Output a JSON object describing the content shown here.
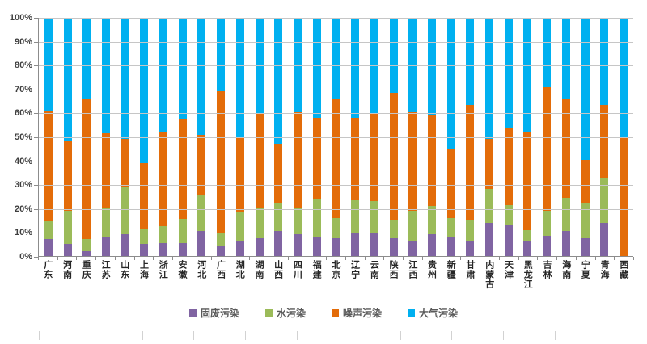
{
  "chart_data": {
    "type": "bar",
    "variant": "stacked-percent-column",
    "title": "",
    "xlabel": "",
    "ylabel": "",
    "ylim": [
      0,
      100
    ],
    "grid": true,
    "legend_position": "bottom",
    "y_tick_labels": [
      "0%",
      "10%",
      "20%",
      "30%",
      "40%",
      "50%",
      "60%",
      "70%",
      "80%",
      "90%",
      "100%"
    ],
    "categories": [
      "广东",
      "河南",
      "重庆",
      "江苏",
      "山东",
      "上海",
      "浙江",
      "安徽",
      "河北",
      "广西",
      "湖北",
      "湖南",
      "山西",
      "四川",
      "福建",
      "北京",
      "辽宁",
      "云南",
      "陕西",
      "江西",
      "贵州",
      "新疆",
      "甘肃",
      "内蒙古",
      "天津",
      "黑龙江",
      "吉林",
      "海南",
      "宁夏",
      "青海",
      "西藏"
    ],
    "series": [
      {
        "name": "固废污染",
        "color": "#8064A2",
        "values": [
          7,
          5,
          2,
          8,
          9,
          5,
          5.5,
          5.5,
          10.5,
          4,
          6.5,
          7.5,
          10.5,
          9,
          8,
          7.5,
          9.5,
          10,
          7.5,
          6,
          9,
          8,
          6.5,
          14,
          13,
          6,
          8.5,
          10.5,
          7.5,
          14,
          0
        ]
      },
      {
        "name": "水污染",
        "color": "#9BBB59",
        "values": [
          7.5,
          14,
          5,
          12.5,
          20,
          6.5,
          7,
          10,
          15,
          6,
          12,
          12.5,
          12,
          11,
          16,
          8.5,
          14,
          13,
          7.5,
          13,
          12,
          8,
          8.5,
          14,
          8.5,
          5,
          10.5,
          14,
          15,
          19,
          0
        ]
      },
      {
        "name": "噪声污染",
        "color": "#E36C09",
        "values": [
          46.5,
          29,
          59,
          31,
          20,
          27.5,
          39.5,
          42,
          25.5,
          59,
          31.5,
          39.5,
          24.5,
          40.5,
          34,
          50,
          34.5,
          36.5,
          53.5,
          41.5,
          38,
          29,
          48.5,
          21,
          32,
          41,
          52,
          41.5,
          18,
          30.5,
          50
        ]
      },
      {
        "name": "大气污染",
        "color": "#00B0F0",
        "values": [
          39,
          52,
          34,
          48.5,
          51,
          61,
          48,
          42.5,
          49,
          31,
          50,
          40.5,
          53,
          39.5,
          42,
          34,
          42,
          40.5,
          31.5,
          39.5,
          41,
          55,
          36.5,
          51,
          46.5,
          48,
          29,
          34,
          59.5,
          36.5,
          50
        ]
      }
    ],
    "colors": {
      "gridline": "#c6c6c6",
      "axis": "#8c8c8c",
      "axis_text": "#3f3f3f"
    }
  }
}
